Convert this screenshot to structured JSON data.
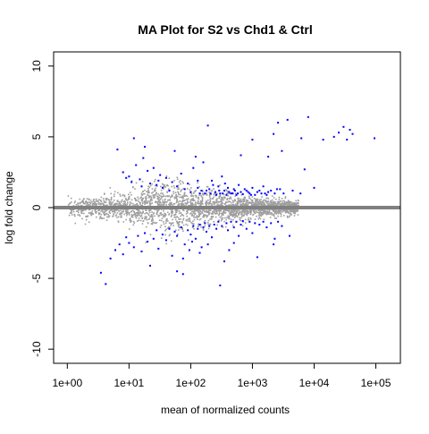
{
  "chart_data": {
    "type": "scatter",
    "title": "MA Plot for S2 vs Chd1 & Ctrl",
    "xlabel": "mean of normalized counts",
    "ylabel": "log fold change",
    "x_scale": "log10",
    "xlim": [
      0.6,
      250000
    ],
    "ylim": [
      -11,
      11
    ],
    "x_ticks": [
      1,
      10,
      100,
      1000,
      10000,
      100000
    ],
    "x_tick_labels": [
      "1e+00",
      "1e+01",
      "1e+02",
      "1e+03",
      "1e+04",
      "1e+05"
    ],
    "y_ticks": [
      -10,
      -5,
      0,
      5,
      10
    ],
    "y_tick_labels": [
      "-10",
      "-5",
      "0",
      "5",
      "10"
    ],
    "grid": false,
    "legend": "none",
    "reference_line": {
      "y": 0,
      "color": "#808080"
    },
    "colors": {
      "not_significant": "#9e9e9e",
      "significant": "#0000ff",
      "axis": "#000000"
    },
    "series": [
      {
        "color": "#0000ff",
        "points": [
          [
            6.5,
            4.1
          ],
          [
            12,
            4.9
          ],
          [
            18,
            4.3
          ],
          [
            55,
            4.0
          ],
          [
            120,
            3.6
          ],
          [
            190,
            5.8
          ],
          [
            650,
            3.7
          ],
          [
            1000,
            4.8
          ],
          [
            2600,
            6.0
          ],
          [
            2200,
            5.2
          ],
          [
            3700,
            6.2
          ],
          [
            6200,
            4.9
          ],
          [
            8000,
            6.4
          ],
          [
            14000,
            4.8
          ],
          [
            21000,
            5.0
          ],
          [
            25000,
            5.3
          ],
          [
            30000,
            5.7
          ],
          [
            34000,
            4.8
          ],
          [
            38000,
            5.5
          ],
          [
            42000,
            5.2
          ],
          [
            95000,
            4.9
          ],
          [
            3000,
            4.0
          ],
          [
            7000,
            2.7
          ],
          [
            1800,
            3.6
          ],
          [
            4500,
            1.2
          ],
          [
            6000,
            1.0
          ],
          [
            10000,
            1.4
          ],
          [
            2500,
            1.3
          ],
          [
            8,
            2.5
          ],
          [
            9,
            2.1
          ],
          [
            10,
            2.2
          ],
          [
            11,
            1.8
          ],
          [
            13,
            3.0
          ],
          [
            15,
            2.0
          ],
          [
            16,
            1.5
          ],
          [
            17,
            3.5
          ],
          [
            20,
            2.6
          ],
          [
            22,
            1.7
          ],
          [
            25,
            2.8
          ],
          [
            28,
            1.6
          ],
          [
            30,
            1.9
          ],
          [
            32,
            2.3
          ],
          [
            35,
            1.4
          ],
          [
            40,
            2.1
          ],
          [
            45,
            1.2
          ],
          [
            50,
            1.8
          ],
          [
            60,
            1.5
          ],
          [
            70,
            2.4
          ],
          [
            80,
            1.3
          ],
          [
            90,
            1.7
          ],
          [
            100,
            1.1
          ],
          [
            110,
            2.8
          ],
          [
            130,
            1.4
          ],
          [
            150,
            1.2
          ],
          [
            160,
            3.2
          ],
          [
            170,
            1.0
          ],
          [
            200,
            1.3
          ],
          [
            220,
            1.9
          ],
          [
            250,
            1.1
          ],
          [
            280,
            1.5
          ],
          [
            300,
            1.0
          ],
          [
            320,
            2.2
          ],
          [
            350,
            1.2
          ],
          [
            380,
            0.9
          ],
          [
            400,
            1.4
          ],
          [
            450,
            1.0
          ],
          [
            500,
            1.3
          ],
          [
            550,
            0.9
          ],
          [
            600,
            1.6
          ],
          [
            650,
            1.1
          ],
          [
            700,
            0.95
          ],
          [
            800,
            1.2
          ],
          [
            900,
            1.0
          ],
          [
            1000,
            1.4
          ],
          [
            1100,
            0.9
          ],
          [
            1200,
            1.1
          ],
          [
            1400,
            1.0
          ],
          [
            1500,
            1.5
          ],
          [
            1700,
            0.9
          ],
          [
            2000,
            1.2
          ],
          [
            130,
            1.9
          ],
          [
            140,
            1.0
          ],
          [
            180,
            1.2
          ],
          [
            210,
            1.0
          ],
          [
            230,
            1.6
          ],
          [
            260,
            0.9
          ],
          [
            290,
            1.2
          ],
          [
            330,
            1.0
          ],
          [
            360,
            1.7
          ],
          [
            420,
            1.1
          ],
          [
            480,
            1.0
          ],
          [
            520,
            1.2
          ],
          [
            580,
            1.0
          ],
          [
            750,
            1.3
          ],
          [
            850,
            1.1
          ],
          [
            950,
            0.9
          ],
          [
            1300,
            1.2
          ],
          [
            1600,
            1.0
          ],
          [
            1800,
            1.1
          ],
          [
            2300,
            1.0
          ],
          [
            2800,
            1.3
          ],
          [
            3200,
            1.0
          ],
          [
            3.5,
            -4.6
          ],
          [
            4.2,
            -5.4
          ],
          [
            5,
            -3.6
          ],
          [
            6,
            -3.0
          ],
          [
            7,
            -2.6
          ],
          [
            8,
            -3.3
          ],
          [
            9,
            -2.1
          ],
          [
            10,
            -2.5
          ],
          [
            12,
            -2.8
          ],
          [
            14,
            -2.0
          ],
          [
            16,
            -3.1
          ],
          [
            18,
            -1.8
          ],
          [
            20,
            -2.4
          ],
          [
            22,
            -4.1
          ],
          [
            25,
            -2.2
          ],
          [
            28,
            -1.6
          ],
          [
            30,
            -2.9
          ],
          [
            35,
            -1.9
          ],
          [
            40,
            -2.3
          ],
          [
            45,
            -1.5
          ],
          [
            50,
            -3.4
          ],
          [
            55,
            -1.7
          ],
          [
            60,
            -2.0
          ],
          [
            70,
            -1.4
          ],
          [
            80,
            -2.6
          ],
          [
            90,
            -1.6
          ],
          [
            100,
            -1.9
          ],
          [
            110,
            -1.3
          ],
          [
            120,
            -2.2
          ],
          [
            130,
            -1.5
          ],
          [
            140,
            -1.2
          ],
          [
            150,
            -2.8
          ],
          [
            160,
            -1.4
          ],
          [
            170,
            -1.1
          ],
          [
            180,
            -1.7
          ],
          [
            200,
            -1.3
          ],
          [
            220,
            -2.1
          ],
          [
            240,
            -1.2
          ],
          [
            260,
            -1.5
          ],
          [
            280,
            -1.0
          ],
          [
            300,
            -5.5
          ],
          [
            320,
            -1.3
          ],
          [
            350,
            -3.8
          ],
          [
            380,
            -1.1
          ],
          [
            400,
            -1.6
          ],
          [
            450,
            -1.0
          ],
          [
            500,
            -1.4
          ],
          [
            550,
            -1.0
          ],
          [
            600,
            -2.0
          ],
          [
            650,
            -1.2
          ],
          [
            700,
            -0.95
          ],
          [
            800,
            -1.5
          ],
          [
            900,
            -1.0
          ],
          [
            1000,
            -1.8
          ],
          [
            1100,
            -1.1
          ],
          [
            1200,
            -3.5
          ],
          [
            1300,
            -1.2
          ],
          [
            1500,
            -1.0
          ],
          [
            1700,
            -1.4
          ],
          [
            2000,
            -1.1
          ],
          [
            2300,
            -2.2
          ],
          [
            2600,
            -1.0
          ],
          [
            3000,
            -1.3
          ],
          [
            4000,
            -2.0
          ],
          [
            60,
            -4.5
          ],
          [
            95,
            -3.0
          ],
          [
            75,
            -3.6
          ],
          [
            105,
            -2.4
          ],
          [
            190,
            -2.6
          ],
          [
            420,
            -3.0
          ],
          [
            75,
            -4.7
          ],
          [
            140,
            -3.2
          ],
          [
            500,
            -2.5
          ],
          [
            2200,
            -2.6
          ]
        ]
      }
    ]
  }
}
